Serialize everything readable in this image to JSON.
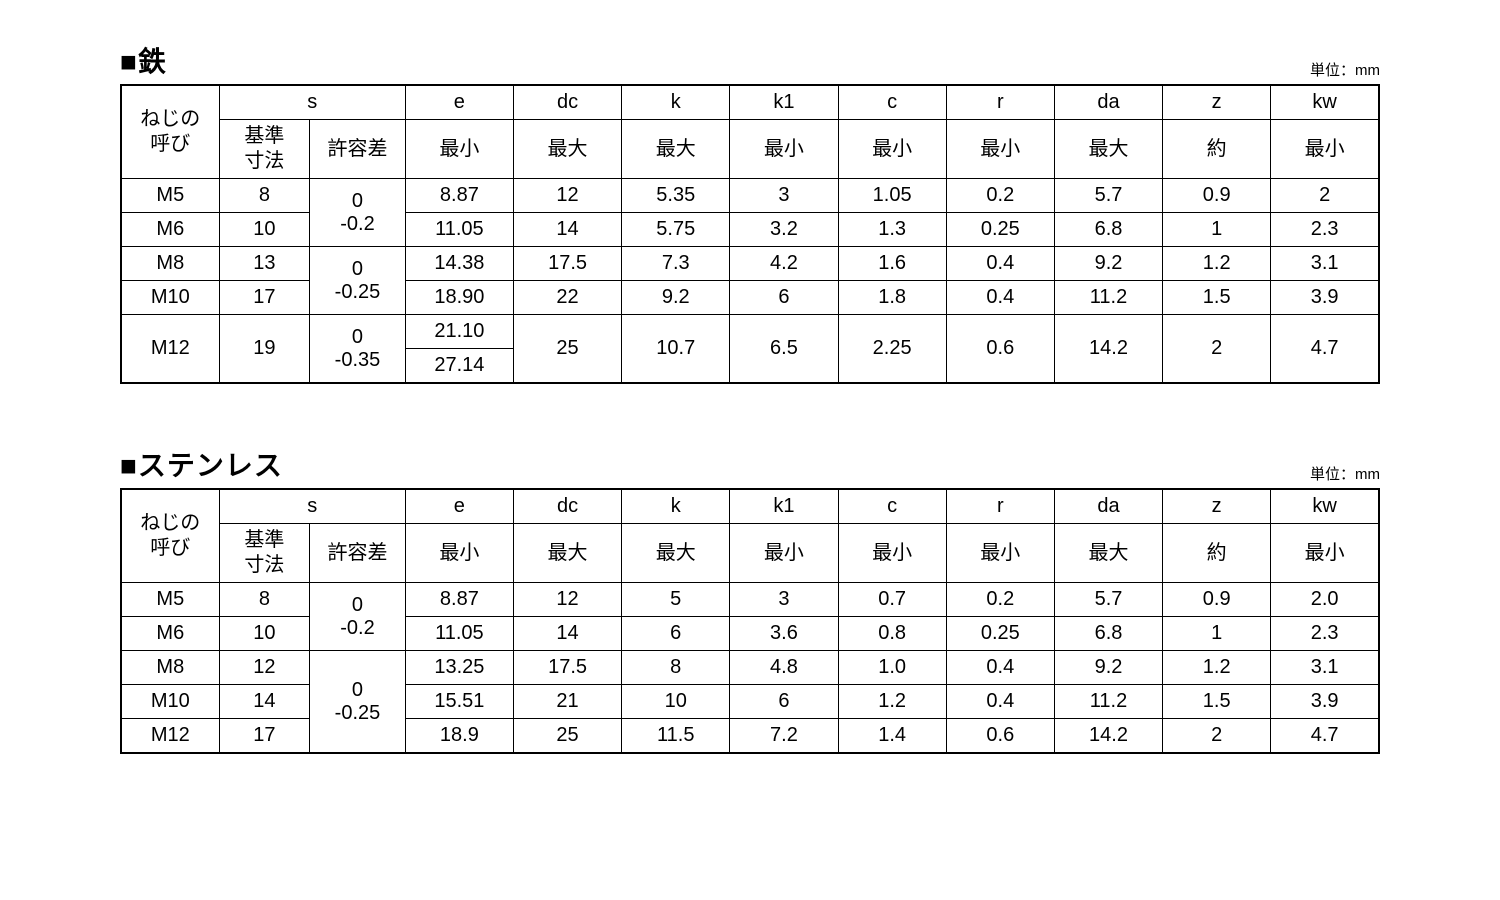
{
  "unit_label": "単位：mm",
  "headers": {
    "name_col": "ねじの\n呼び",
    "s": "s",
    "s_sub1": "基準\n寸法",
    "s_sub2": "許容差",
    "e": "e",
    "e_sub": "最小",
    "dc": "dc",
    "dc_sub": "最大",
    "k": "k",
    "k_sub": "最大",
    "k1": "k1",
    "k1_sub": "最小",
    "c": "c",
    "c_sub": "最小",
    "r": "r",
    "r_sub": "最小",
    "da": "da",
    "da_sub": "最大",
    "z": "z",
    "z_sub": "約",
    "kw": "kw",
    "kw_sub": "最小"
  },
  "table1": {
    "title": "■鉄",
    "tolerances": {
      "g1_top": "0",
      "g1_bot": "-0.2",
      "g2_top": "0",
      "g2_bot": "-0.25",
      "g3_top": "0",
      "g3_bot": "-0.35"
    },
    "rows": {
      "m5": {
        "name": "M5",
        "s": "8",
        "e": "8.87",
        "dc": "12",
        "k": "5.35",
        "k1": "3",
        "c": "1.05",
        "r": "0.2",
        "da": "5.7",
        "z": "0.9",
        "kw": "2"
      },
      "m6": {
        "name": "M6",
        "s": "10",
        "e": "11.05",
        "dc": "14",
        "k": "5.75",
        "k1": "3.2",
        "c": "1.3",
        "r": "0.25",
        "da": "6.8",
        "z": "1",
        "kw": "2.3"
      },
      "m8": {
        "name": "M8",
        "s": "13",
        "e": "14.38",
        "dc": "17.5",
        "k": "7.3",
        "k1": "4.2",
        "c": "1.6",
        "r": "0.4",
        "da": "9.2",
        "z": "1.2",
        "kw": "3.1"
      },
      "m10": {
        "name": "M10",
        "s": "17",
        "e": "18.90",
        "dc": "22",
        "k": "9.2",
        "k1": "6",
        "c": "1.8",
        "r": "0.4",
        "da": "11.2",
        "z": "1.5",
        "kw": "3.9"
      },
      "m12": {
        "name": "M12",
        "s": "19",
        "e_a": "21.10",
        "e_b": "27.14",
        "dc": "25",
        "k": "10.7",
        "k1": "6.5",
        "c": "2.25",
        "r": "0.6",
        "da": "14.2",
        "z": "2",
        "kw": "4.7"
      }
    }
  },
  "table2": {
    "title": "■ステンレス",
    "tolerances": {
      "g1_top": "0",
      "g1_bot": "-0.2",
      "g2_top": "0",
      "g2_bot": "-0.25"
    },
    "rows": {
      "m5": {
        "name": "M5",
        "s": "8",
        "e": "8.87",
        "dc": "12",
        "k": "5",
        "k1": "3",
        "c": "0.7",
        "r": "0.2",
        "da": "5.7",
        "z": "0.9",
        "kw": "2.0"
      },
      "m6": {
        "name": "M6",
        "s": "10",
        "e": "11.05",
        "dc": "14",
        "k": "6",
        "k1": "3.6",
        "c": "0.8",
        "r": "0.25",
        "da": "6.8",
        "z": "1",
        "kw": "2.3"
      },
      "m8": {
        "name": "M8",
        "s": "12",
        "e": "13.25",
        "dc": "17.5",
        "k": "8",
        "k1": "4.8",
        "c": "1.0",
        "r": "0.4",
        "da": "9.2",
        "z": "1.2",
        "kw": "3.1"
      },
      "m10": {
        "name": "M10",
        "s": "14",
        "e": "15.51",
        "dc": "21",
        "k": "10",
        "k1": "6",
        "c": "1.2",
        "r": "0.4",
        "da": "11.2",
        "z": "1.5",
        "kw": "3.9"
      },
      "m12": {
        "name": "M12",
        "s": "17",
        "e": "18.9",
        "dc": "25",
        "k": "11.5",
        "k1": "7.2",
        "c": "1.4",
        "r": "0.6",
        "da": "14.2",
        "z": "2",
        "kw": "4.7"
      }
    }
  }
}
